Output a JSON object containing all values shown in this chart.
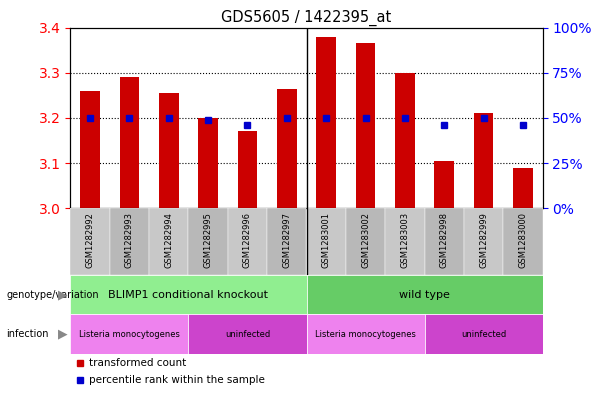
{
  "title": "GDS5605 / 1422395_at",
  "samples": [
    "GSM1282992",
    "GSM1282993",
    "GSM1282994",
    "GSM1282995",
    "GSM1282996",
    "GSM1282997",
    "GSM1283001",
    "GSM1283002",
    "GSM1283003",
    "GSM1282998",
    "GSM1282999",
    "GSM1283000"
  ],
  "transformed_count": [
    3.26,
    3.29,
    3.255,
    3.2,
    3.17,
    3.265,
    3.38,
    3.365,
    3.3,
    3.105,
    3.21,
    3.09
  ],
  "percentile_values": [
    3.2,
    3.2,
    3.2,
    3.195,
    3.185,
    3.2,
    3.2,
    3.2,
    3.2,
    3.185,
    3.2,
    3.185
  ],
  "ylim_left": [
    3.0,
    3.4
  ],
  "ylim_right": [
    0,
    100
  ],
  "yticks_left": [
    3.0,
    3.1,
    3.2,
    3.3,
    3.4
  ],
  "yticks_right": [
    0,
    25,
    50,
    75,
    100
  ],
  "ytick_labels_right": [
    "0%",
    "25%",
    "50%",
    "75%",
    "100%"
  ],
  "bar_color": "#cc0000",
  "dot_color": "#0000cc",
  "separator_col": 5,
  "genotype_groups": [
    {
      "label": "BLIMP1 conditional knockout",
      "start": 0,
      "end": 5,
      "color": "#90ee90"
    },
    {
      "label": "wild type",
      "start": 6,
      "end": 11,
      "color": "#66cc66"
    }
  ],
  "infection_groups": [
    {
      "label": "Listeria monocytogenes",
      "start": 0,
      "end": 2,
      "color": "#ee82ee"
    },
    {
      "label": "uninfected",
      "start": 3,
      "end": 5,
      "color": "#cc44cc"
    },
    {
      "label": "Listeria monocytogenes",
      "start": 6,
      "end": 8,
      "color": "#ee82ee"
    },
    {
      "label": "uninfected",
      "start": 9,
      "end": 11,
      "color": "#cc44cc"
    }
  ],
  "col_bg_light": "#c8c8c8",
  "col_bg_dark": "#b8b8b8",
  "legend_items": [
    {
      "label": "transformed count",
      "color": "#cc0000"
    },
    {
      "label": "percentile rank within the sample",
      "color": "#0000cc"
    }
  ]
}
